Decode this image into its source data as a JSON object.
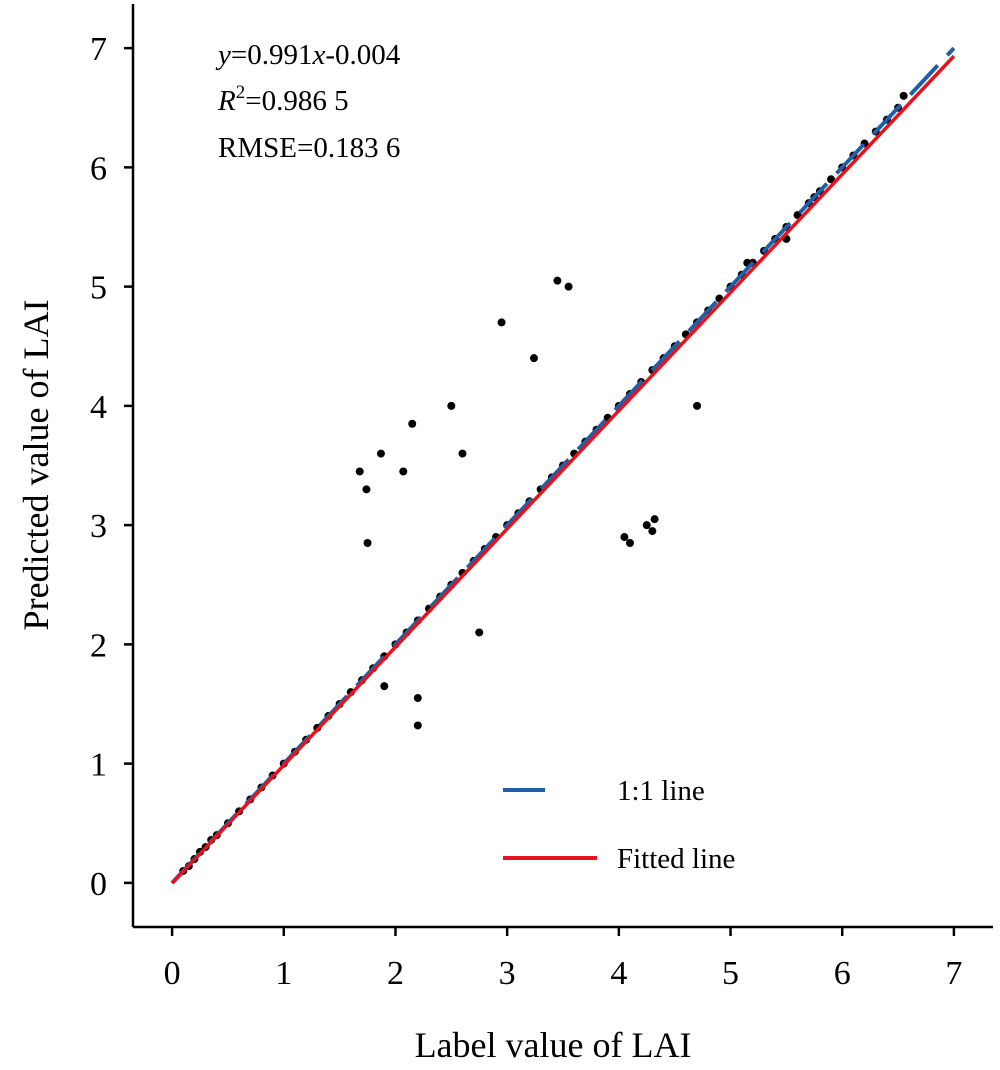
{
  "chart_data": {
    "type": "scatter",
    "xlabel": "Label value of LAI",
    "ylabel": "Predicted value of LAI",
    "xlim": [
      -0.35,
      7.35
    ],
    "ylim": [
      -0.37,
      7.37
    ],
    "x_ticks": [
      "0",
      "1",
      "2",
      "3",
      "4",
      "5",
      "6",
      "7"
    ],
    "y_ticks": [
      "0",
      "1",
      "2",
      "3",
      "4",
      "5",
      "6",
      "7"
    ],
    "grid": false,
    "legend_position": "bottom-right",
    "annotations": {
      "equation": {
        "y": "y",
        "rhs_1": "=0.991",
        "x": "x",
        "rhs_2": "-0.004"
      },
      "r2": {
        "r": "R",
        "sup": "2",
        "rhs": "=0.986 5"
      },
      "rmse": "RMSE=0.183 6"
    },
    "fit": {
      "slope": 0.991,
      "intercept": -0.004,
      "r2": 0.9865,
      "rmse": 0.1836
    },
    "series": [
      {
        "name": "1:1 line",
        "kind": "line",
        "style": "dashed",
        "color": "#1f5fa8",
        "x": [
          0,
          7
        ],
        "y": [
          0,
          7
        ]
      },
      {
        "name": "Fitted line",
        "kind": "line",
        "style": "solid",
        "color": "#e8121c",
        "x": [
          0,
          7
        ],
        "y": [
          -0.004,
          6.933
        ]
      },
      {
        "name": "",
        "kind": "points",
        "color": "#000000",
        "x": [
          0.1,
          0.15,
          0.2,
          0.25,
          0.3,
          0.35,
          0.4,
          0.5,
          0.6,
          0.7,
          0.8,
          0.9,
          1.0,
          1.1,
          1.2,
          1.3,
          1.4,
          1.5,
          1.6,
          1.7,
          1.8,
          1.9,
          2.0,
          2.1,
          2.2,
          2.3,
          2.4,
          2.5,
          2.6,
          2.7,
          2.8,
          2.9,
          3.0,
          3.1,
          3.2,
          3.3,
          3.4,
          3.5,
          3.6,
          3.7,
          3.8,
          3.9,
          4.0,
          4.1,
          4.2,
          4.3,
          4.4,
          4.5,
          4.6,
          4.7,
          4.8,
          4.9,
          5.0,
          5.1,
          5.2,
          5.3,
          5.4,
          5.5,
          5.6,
          5.7,
          5.8,
          5.9,
          6.0,
          6.1,
          6.2,
          6.3,
          6.4,
          6.5,
          6.55,
          1.68,
          1.87,
          1.74,
          2.07,
          2.15,
          2.5,
          2.95,
          3.24,
          3.45,
          3.55,
          4.05,
          4.1,
          4.25,
          4.32,
          4.3,
          4.7,
          5.15,
          5.5,
          5.75,
          1.9,
          2.2,
          2.6,
          1.75,
          2.75,
          2.2
        ],
        "y": [
          0.1,
          0.14,
          0.2,
          0.26,
          0.3,
          0.36,
          0.4,
          0.5,
          0.6,
          0.7,
          0.8,
          0.9,
          1.0,
          1.1,
          1.2,
          1.3,
          1.4,
          1.5,
          1.6,
          1.7,
          1.8,
          1.9,
          2.0,
          2.1,
          2.2,
          2.3,
          2.4,
          2.5,
          2.6,
          2.7,
          2.8,
          2.9,
          3.0,
          3.1,
          3.2,
          3.3,
          3.4,
          3.5,
          3.6,
          3.7,
          3.8,
          3.9,
          4.0,
          4.1,
          4.2,
          4.3,
          4.4,
          4.5,
          4.6,
          4.7,
          4.8,
          4.9,
          5.0,
          5.1,
          5.2,
          5.3,
          5.4,
          5.5,
          5.6,
          5.7,
          5.8,
          5.9,
          6.0,
          6.1,
          6.2,
          6.3,
          6.4,
          6.5,
          6.6,
          3.45,
          3.6,
          3.3,
          3.45,
          3.85,
          4.0,
          4.7,
          4.4,
          5.05,
          5.0,
          2.9,
          2.85,
          3.0,
          3.05,
          2.95,
          4.0,
          5.2,
          5.4,
          5.75,
          1.65,
          1.32,
          3.6,
          2.85,
          2.1,
          1.55
        ]
      }
    ]
  }
}
